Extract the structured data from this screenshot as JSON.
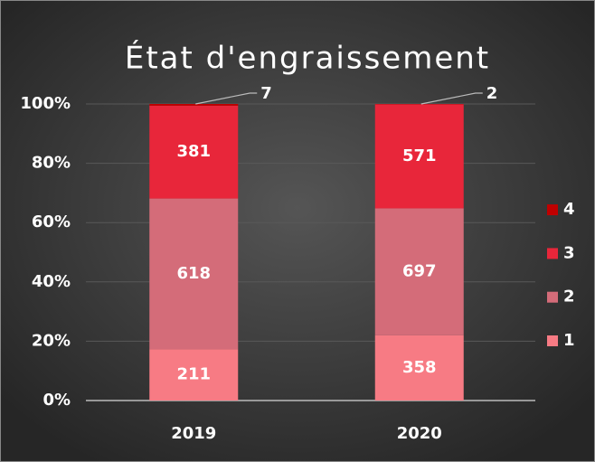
{
  "chart_data": {
    "type": "bar",
    "stacking": "percent",
    "title": "État d'engraissement",
    "categories": [
      "2019",
      "2020"
    ],
    "series": [
      {
        "name": "1",
        "color": "#f77b84",
        "values": [
          211,
          358
        ]
      },
      {
        "name": "2",
        "color": "#d46c79",
        "values": [
          618,
          697
        ]
      },
      {
        "name": "3",
        "color": "#e8263a",
        "values": [
          381,
          571
        ]
      },
      {
        "name": "4",
        "color": "#c00000",
        "values": [
          7,
          2
        ]
      }
    ],
    "ylim": [
      0,
      100
    ],
    "yticks": [
      {
        "value": 0,
        "label": "0%"
      },
      {
        "value": 20,
        "label": "20%"
      },
      {
        "value": 40,
        "label": "40%"
      },
      {
        "value": 60,
        "label": "60%"
      },
      {
        "value": 80,
        "label": "80%"
      },
      {
        "value": 100,
        "label": "100%"
      }
    ],
    "grid": true,
    "legend": "right"
  }
}
